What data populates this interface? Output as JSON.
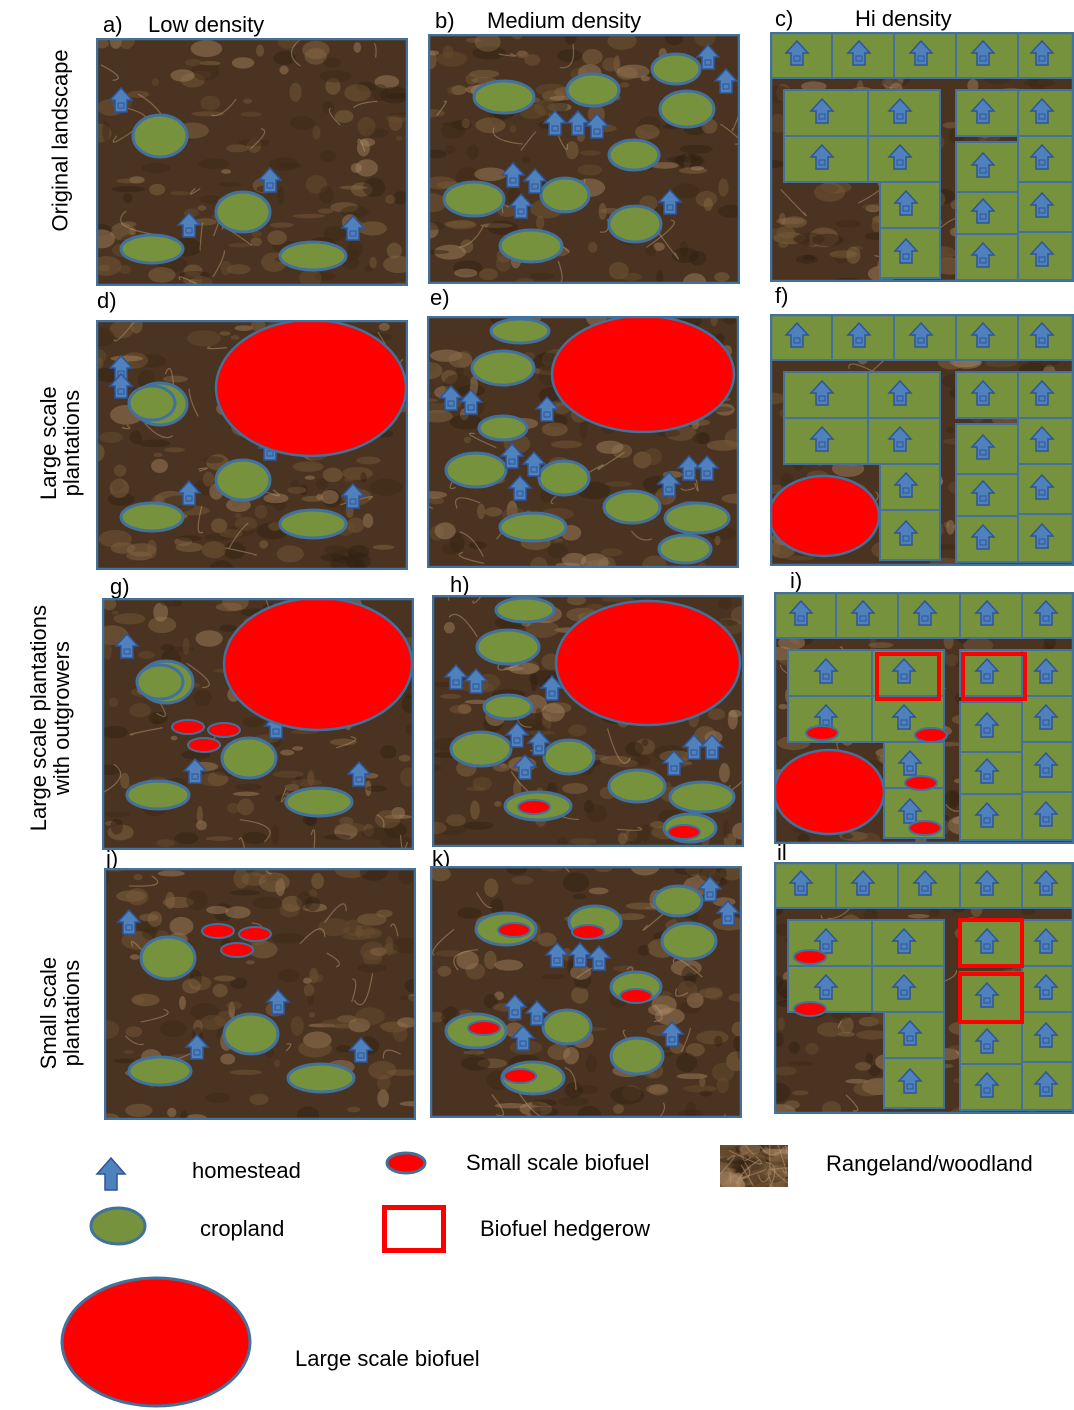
{
  "columns": {
    "a": "a)",
    "a_title": "Low density",
    "b": "b)",
    "b_title": "Medium density",
    "c": "c)",
    "c_title": "Hi density"
  },
  "panel_letters": {
    "d": "d)",
    "e": "e)",
    "f": "f)",
    "g": "g)",
    "h": "h)",
    "i": "i)",
    "j": "j)",
    "k": "k)",
    "l": "il"
  },
  "rows": {
    "r1": "Original landscape",
    "r2": "Large scale plantations",
    "r3": "Large scale plantations with outgrowers",
    "r4": "Small scale plantations"
  },
  "legend": {
    "homestead": "homestead",
    "small_biofuel": "Small scale biofuel",
    "rangeland": "Rangeland/woodland",
    "cropland": "cropland",
    "hedgerow": "Biofuel hedgerow",
    "large_biofuel": "Large scale biofuel"
  },
  "colors": {
    "cropland": "#76923c",
    "outline": "#41719c",
    "homestead": "#4f81bd",
    "biofuel": "#ff0000",
    "rangeland": "#4a3320"
  }
}
